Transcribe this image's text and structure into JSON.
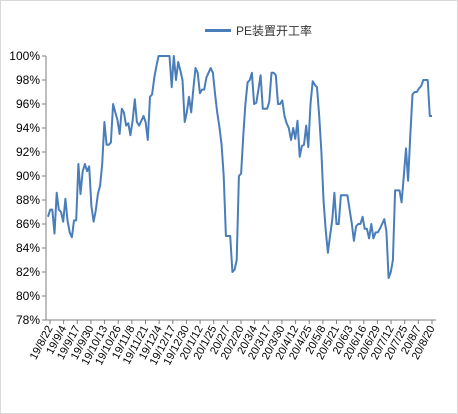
{
  "chart_data": {
    "type": "line",
    "title": "",
    "xlabel": "",
    "ylabel": "",
    "ylim": [
      78,
      100
    ],
    "y_ticks": [
      "78%",
      "80%",
      "82%",
      "84%",
      "86%",
      "88%",
      "90%",
      "92%",
      "94%",
      "96%",
      "98%",
      "100%"
    ],
    "x_tick_labels": [
      "19/8/22",
      "19/9/4",
      "19/9/17",
      "19/9/30",
      "19/10/13",
      "19/10/26",
      "19/11/8",
      "19/11/21",
      "19/12/4",
      "19/12/17",
      "19/12/30",
      "20/1/12",
      "20/1/25",
      "20/2/7",
      "20/2/20",
      "20/3/4",
      "20/3/17",
      "20/3/30",
      "20/4/12",
      "20/4/25",
      "20/5/8",
      "20/5/21",
      "20/6/3",
      "20/6/16",
      "20/6/29",
      "20/7/12",
      "20/7/25",
      "20/8/7",
      "20/8/20"
    ],
    "grid": false,
    "legend_position": "top",
    "series": [
      {
        "name": "PE装置开工率",
        "color": "#4a7ebb",
        "values": [
          86.6,
          87.2,
          87.2,
          85.2,
          88.6,
          87.2,
          87.0,
          86.2,
          88.1,
          86.3,
          85.3,
          84.9,
          86.3,
          86.3,
          91.0,
          88.5,
          90.4,
          91.0,
          90.4,
          90.8,
          87.5,
          86.2,
          87.1,
          88.5,
          89.2,
          91.0,
          94.5,
          92.6,
          92.6,
          92.8,
          96.0,
          95.3,
          94.7,
          93.5,
          95.6,
          95.3,
          94.2,
          94.4,
          93.4,
          94.6,
          96.4,
          94.5,
          94.2,
          94.6,
          95.0,
          94.5,
          93.0,
          96.6,
          96.8,
          98.2,
          99.2,
          100.0,
          100.0,
          100.0,
          100.0,
          100.0,
          100.0,
          97.4,
          100.0,
          98.0,
          99.5,
          98.8,
          98.0,
          94.5,
          95.3,
          96.6,
          95.3,
          97.3,
          99.0,
          98.6,
          96.9,
          97.2,
          97.2,
          98.2,
          98.6,
          99.0,
          98.6,
          96.8,
          95.3,
          94.1,
          92.6,
          90.0,
          85.0,
          85.0,
          85.0,
          82.0,
          82.2,
          83.0,
          90.0,
          90.2,
          93.4,
          96.0,
          97.8,
          98.0,
          98.6,
          96.0,
          96.1,
          97.2,
          98.4,
          95.6,
          95.6,
          95.6,
          96.2,
          98.6,
          98.6,
          98.4,
          96.0,
          96.0,
          96.3,
          95.0,
          94.4,
          94.0,
          93.0,
          94.0,
          93.1,
          94.6,
          91.6,
          92.5,
          92.6,
          94.2,
          92.4,
          96.0,
          97.9,
          97.6,
          97.4,
          95.0,
          92.0,
          88.0,
          85.5,
          83.6,
          85.0,
          86.3,
          88.6,
          86.0,
          86.0,
          88.4,
          88.4,
          88.4,
          88.4,
          87.2,
          86.1,
          84.6,
          85.8,
          86.0,
          86.0,
          86.6,
          85.6,
          85.6,
          84.8,
          86.0,
          84.8,
          85.3,
          85.3,
          85.6,
          86.0,
          86.4,
          85.4,
          81.5,
          82.0,
          83.0,
          88.8,
          88.8,
          88.8,
          87.8,
          90.0,
          92.3,
          89.6,
          93.4,
          96.8,
          97.0,
          97.0,
          97.3,
          97.5,
          98.0,
          98.0,
          98.0,
          95.0,
          95.0
        ]
      }
    ]
  }
}
